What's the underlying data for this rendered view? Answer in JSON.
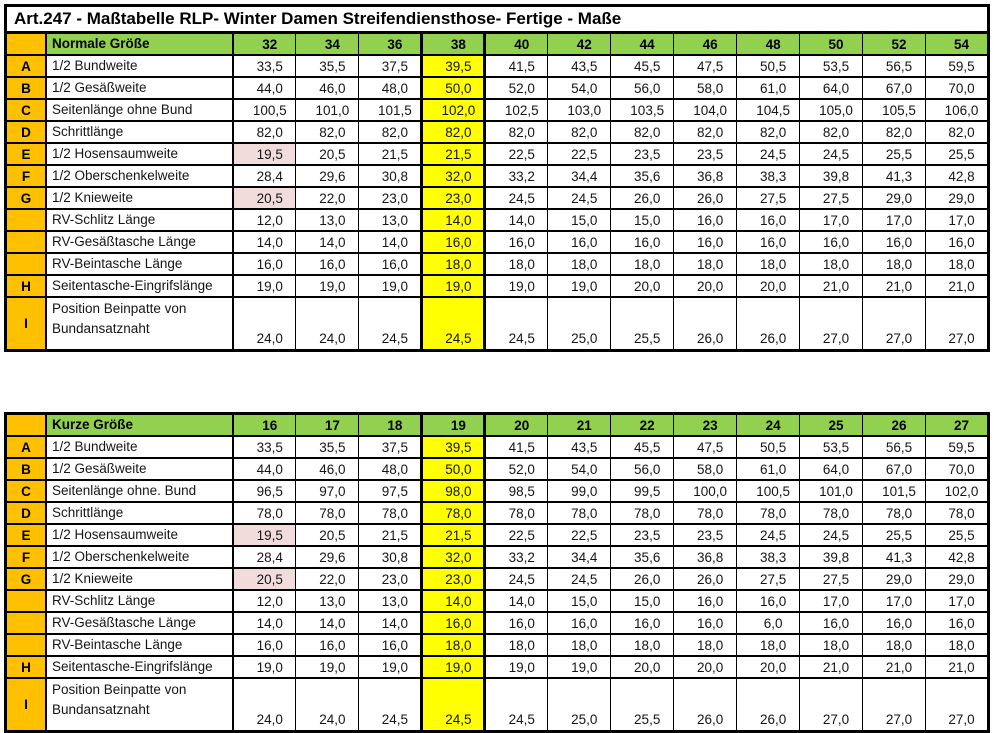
{
  "title": "Art.247 - Maßtabelle RLP- Winter Damen Streifendiensthose- Fertige - Maße",
  "colors": {
    "header_green": "#92D050",
    "letter_orange": "#FFC000",
    "highlight_yellow": "#FFFF00",
    "highlight_pink": "#F2DCDB",
    "border_black": "#000000"
  },
  "tables": [
    {
      "name": "Normale Größe",
      "highlight_col": 3,
      "sizes": [
        "32",
        "34",
        "36",
        "38",
        "40",
        "42",
        "44",
        "46",
        "48",
        "50",
        "52",
        "54"
      ],
      "rows": [
        {
          "letter": "A",
          "label": "1/2 Bundweite",
          "values": [
            "33,5",
            "35,5",
            "37,5",
            "39,5",
            "41,5",
            "43,5",
            "45,5",
            "47,5",
            "50,5",
            "53,5",
            "56,5",
            "59,5"
          ]
        },
        {
          "letter": "B",
          "label": "1/2 Gesäßweite",
          "values": [
            "44,0",
            "46,0",
            "48,0",
            "50,0",
            "52,0",
            "54,0",
            "56,0",
            "58,0",
            "61,0",
            "64,0",
            "67,0",
            "70,0"
          ]
        },
        {
          "letter": "C",
          "label": "Seitenlänge ohne Bund",
          "values": [
            "100,5",
            "101,0",
            "101,5",
            "102,0",
            "102,5",
            "103,0",
            "103,5",
            "104,0",
            "104,5",
            "105,0",
            "105,5",
            "106,0"
          ]
        },
        {
          "letter": "D",
          "label": "Schrittlänge",
          "values": [
            "82,0",
            "82,0",
            "82,0",
            "82,0",
            "82,0",
            "82,0",
            "82,0",
            "82,0",
            "82,0",
            "82,0",
            "82,0",
            "82,0"
          ]
        },
        {
          "letter": "E",
          "label": "1/2 Hosensaumweite",
          "pink": [
            0
          ],
          "values": [
            "19,5",
            "20,5",
            "21,5",
            "21,5",
            "22,5",
            "22,5",
            "23,5",
            "23,5",
            "24,5",
            "24,5",
            "25,5",
            "25,5"
          ]
        },
        {
          "letter": "F",
          "label": "1/2 Oberschenkelweite",
          "values": [
            "28,4",
            "29,6",
            "30,8",
            "32,0",
            "33,2",
            "34,4",
            "35,6",
            "36,8",
            "38,3",
            "39,8",
            "41,3",
            "42,8"
          ]
        },
        {
          "letter": "G",
          "label": "1/2 Knieweite",
          "pink": [
            0
          ],
          "values": [
            "20,5",
            "22,0",
            "23,0",
            "23,0",
            "24,5",
            "24,5",
            "26,0",
            "26,0",
            "27,5",
            "27,5",
            "29,0",
            "29,0"
          ]
        },
        {
          "letter": "",
          "label": "RV-Schlitz Länge",
          "values": [
            "12,0",
            "13,0",
            "13,0",
            "14,0",
            "14,0",
            "15,0",
            "15,0",
            "16,0",
            "16,0",
            "17,0",
            "17,0",
            "17,0"
          ]
        },
        {
          "letter": "",
          "label": "RV-Gesäßtasche Länge",
          "values": [
            "14,0",
            "14,0",
            "14,0",
            "16,0",
            "16,0",
            "16,0",
            "16,0",
            "16,0",
            "16,0",
            "16,0",
            "16,0",
            "16,0"
          ]
        },
        {
          "letter": "",
          "label": "RV-Beintasche Länge",
          "values": [
            "16,0",
            "16,0",
            "16,0",
            "18,0",
            "18,0",
            "18,0",
            "18,0",
            "18,0",
            "18,0",
            "18,0",
            "18,0",
            "18,0"
          ]
        },
        {
          "letter": "H",
          "label": "Seitentasche-Eingrifslänge",
          "values": [
            "19,0",
            "19,0",
            "19,0",
            "19,0",
            "19,0",
            "19,0",
            "20,0",
            "20,0",
            "20,0",
            "21,0",
            "21,0",
            "21,0"
          ]
        },
        {
          "letter": "I",
          "label": "Position Beinpatte von\nBundansatznaht",
          "tall": true,
          "values": [
            "24,0",
            "24,0",
            "24,5",
            "24,5",
            "24,5",
            "25,0",
            "25,5",
            "26,0",
            "26,0",
            "27,0",
            "27,0",
            "27,0"
          ]
        }
      ]
    },
    {
      "name": "Kurze Größe",
      "highlight_col": 3,
      "sizes": [
        "16",
        "17",
        "18",
        "19",
        "20",
        "21",
        "22",
        "23",
        "24",
        "25",
        "26",
        "27"
      ],
      "rows": [
        {
          "letter": "A",
          "label": "1/2 Bundweite",
          "values": [
            "33,5",
            "35,5",
            "37,5",
            "39,5",
            "41,5",
            "43,5",
            "45,5",
            "47,5",
            "50,5",
            "53,5",
            "56,5",
            "59,5"
          ]
        },
        {
          "letter": "B",
          "label": "1/2 Gesäßweite",
          "values": [
            "44,0",
            "46,0",
            "48,0",
            "50,0",
            "52,0",
            "54,0",
            "56,0",
            "58,0",
            "61,0",
            "64,0",
            "67,0",
            "70,0"
          ]
        },
        {
          "letter": "C",
          "label": "Seitenlänge ohne. Bund",
          "values": [
            "96,5",
            "97,0",
            "97,5",
            "98,0",
            "98,5",
            "99,0",
            "99,5",
            "100,0",
            "100,5",
            "101,0",
            "101,5",
            "102,0"
          ]
        },
        {
          "letter": "D",
          "label": "Schrittlänge",
          "values": [
            "78,0",
            "78,0",
            "78,0",
            "78,0",
            "78,0",
            "78,0",
            "78,0",
            "78,0",
            "78,0",
            "78,0",
            "78,0",
            "78,0"
          ]
        },
        {
          "letter": "E",
          "label": "1/2 Hosensaumweite",
          "pink": [
            0
          ],
          "values": [
            "19,5",
            "20,5",
            "21,5",
            "21,5",
            "22,5",
            "22,5",
            "23,5",
            "23,5",
            "24,5",
            "24,5",
            "25,5",
            "25,5"
          ]
        },
        {
          "letter": "F",
          "label": "1/2 Oberschenkelweite",
          "values": [
            "28,4",
            "29,6",
            "30,8",
            "32,0",
            "33,2",
            "34,4",
            "35,6",
            "36,8",
            "38,3",
            "39,8",
            "41,3",
            "42,8"
          ]
        },
        {
          "letter": "G",
          "label": "1/2 Knieweite",
          "pink": [
            0
          ],
          "values": [
            "20,5",
            "22,0",
            "23,0",
            "23,0",
            "24,5",
            "24,5",
            "26,0",
            "26,0",
            "27,5",
            "27,5",
            "29,0",
            "29,0"
          ]
        },
        {
          "letter": "",
          "label": "RV-Schlitz Länge",
          "values": [
            "12,0",
            "13,0",
            "13,0",
            "14,0",
            "14,0",
            "15,0",
            "15,0",
            "16,0",
            "16,0",
            "17,0",
            "17,0",
            "17,0"
          ]
        },
        {
          "letter": "",
          "label": "RV-Gesäßtasche Länge",
          "values": [
            "14,0",
            "14,0",
            "14,0",
            "16,0",
            "16,0",
            "16,0",
            "16,0",
            "16,0",
            "6,0",
            "16,0",
            "16,0",
            "16,0"
          ]
        },
        {
          "letter": "",
          "label": "RV-Beintasche Länge",
          "values": [
            "16,0",
            "16,0",
            "16,0",
            "18,0",
            "18,0",
            "18,0",
            "18,0",
            "18,0",
            "18,0",
            "18,0",
            "18,0",
            "18,0"
          ]
        },
        {
          "letter": "H",
          "label": "Seitentasche-Eingrifslänge",
          "values": [
            "19,0",
            "19,0",
            "19,0",
            "19,0",
            "19,0",
            "19,0",
            "20,0",
            "20,0",
            "20,0",
            "21,0",
            "21,0",
            "21,0"
          ]
        },
        {
          "letter": "I",
          "label": "Position Beinpatte von\nBundansatznaht",
          "tall": true,
          "values": [
            "24,0",
            "24,0",
            "24,5",
            "24,5",
            "24,5",
            "25,0",
            "25,5",
            "26,0",
            "26,0",
            "27,0",
            "27,0",
            "27,0"
          ]
        }
      ]
    }
  ]
}
